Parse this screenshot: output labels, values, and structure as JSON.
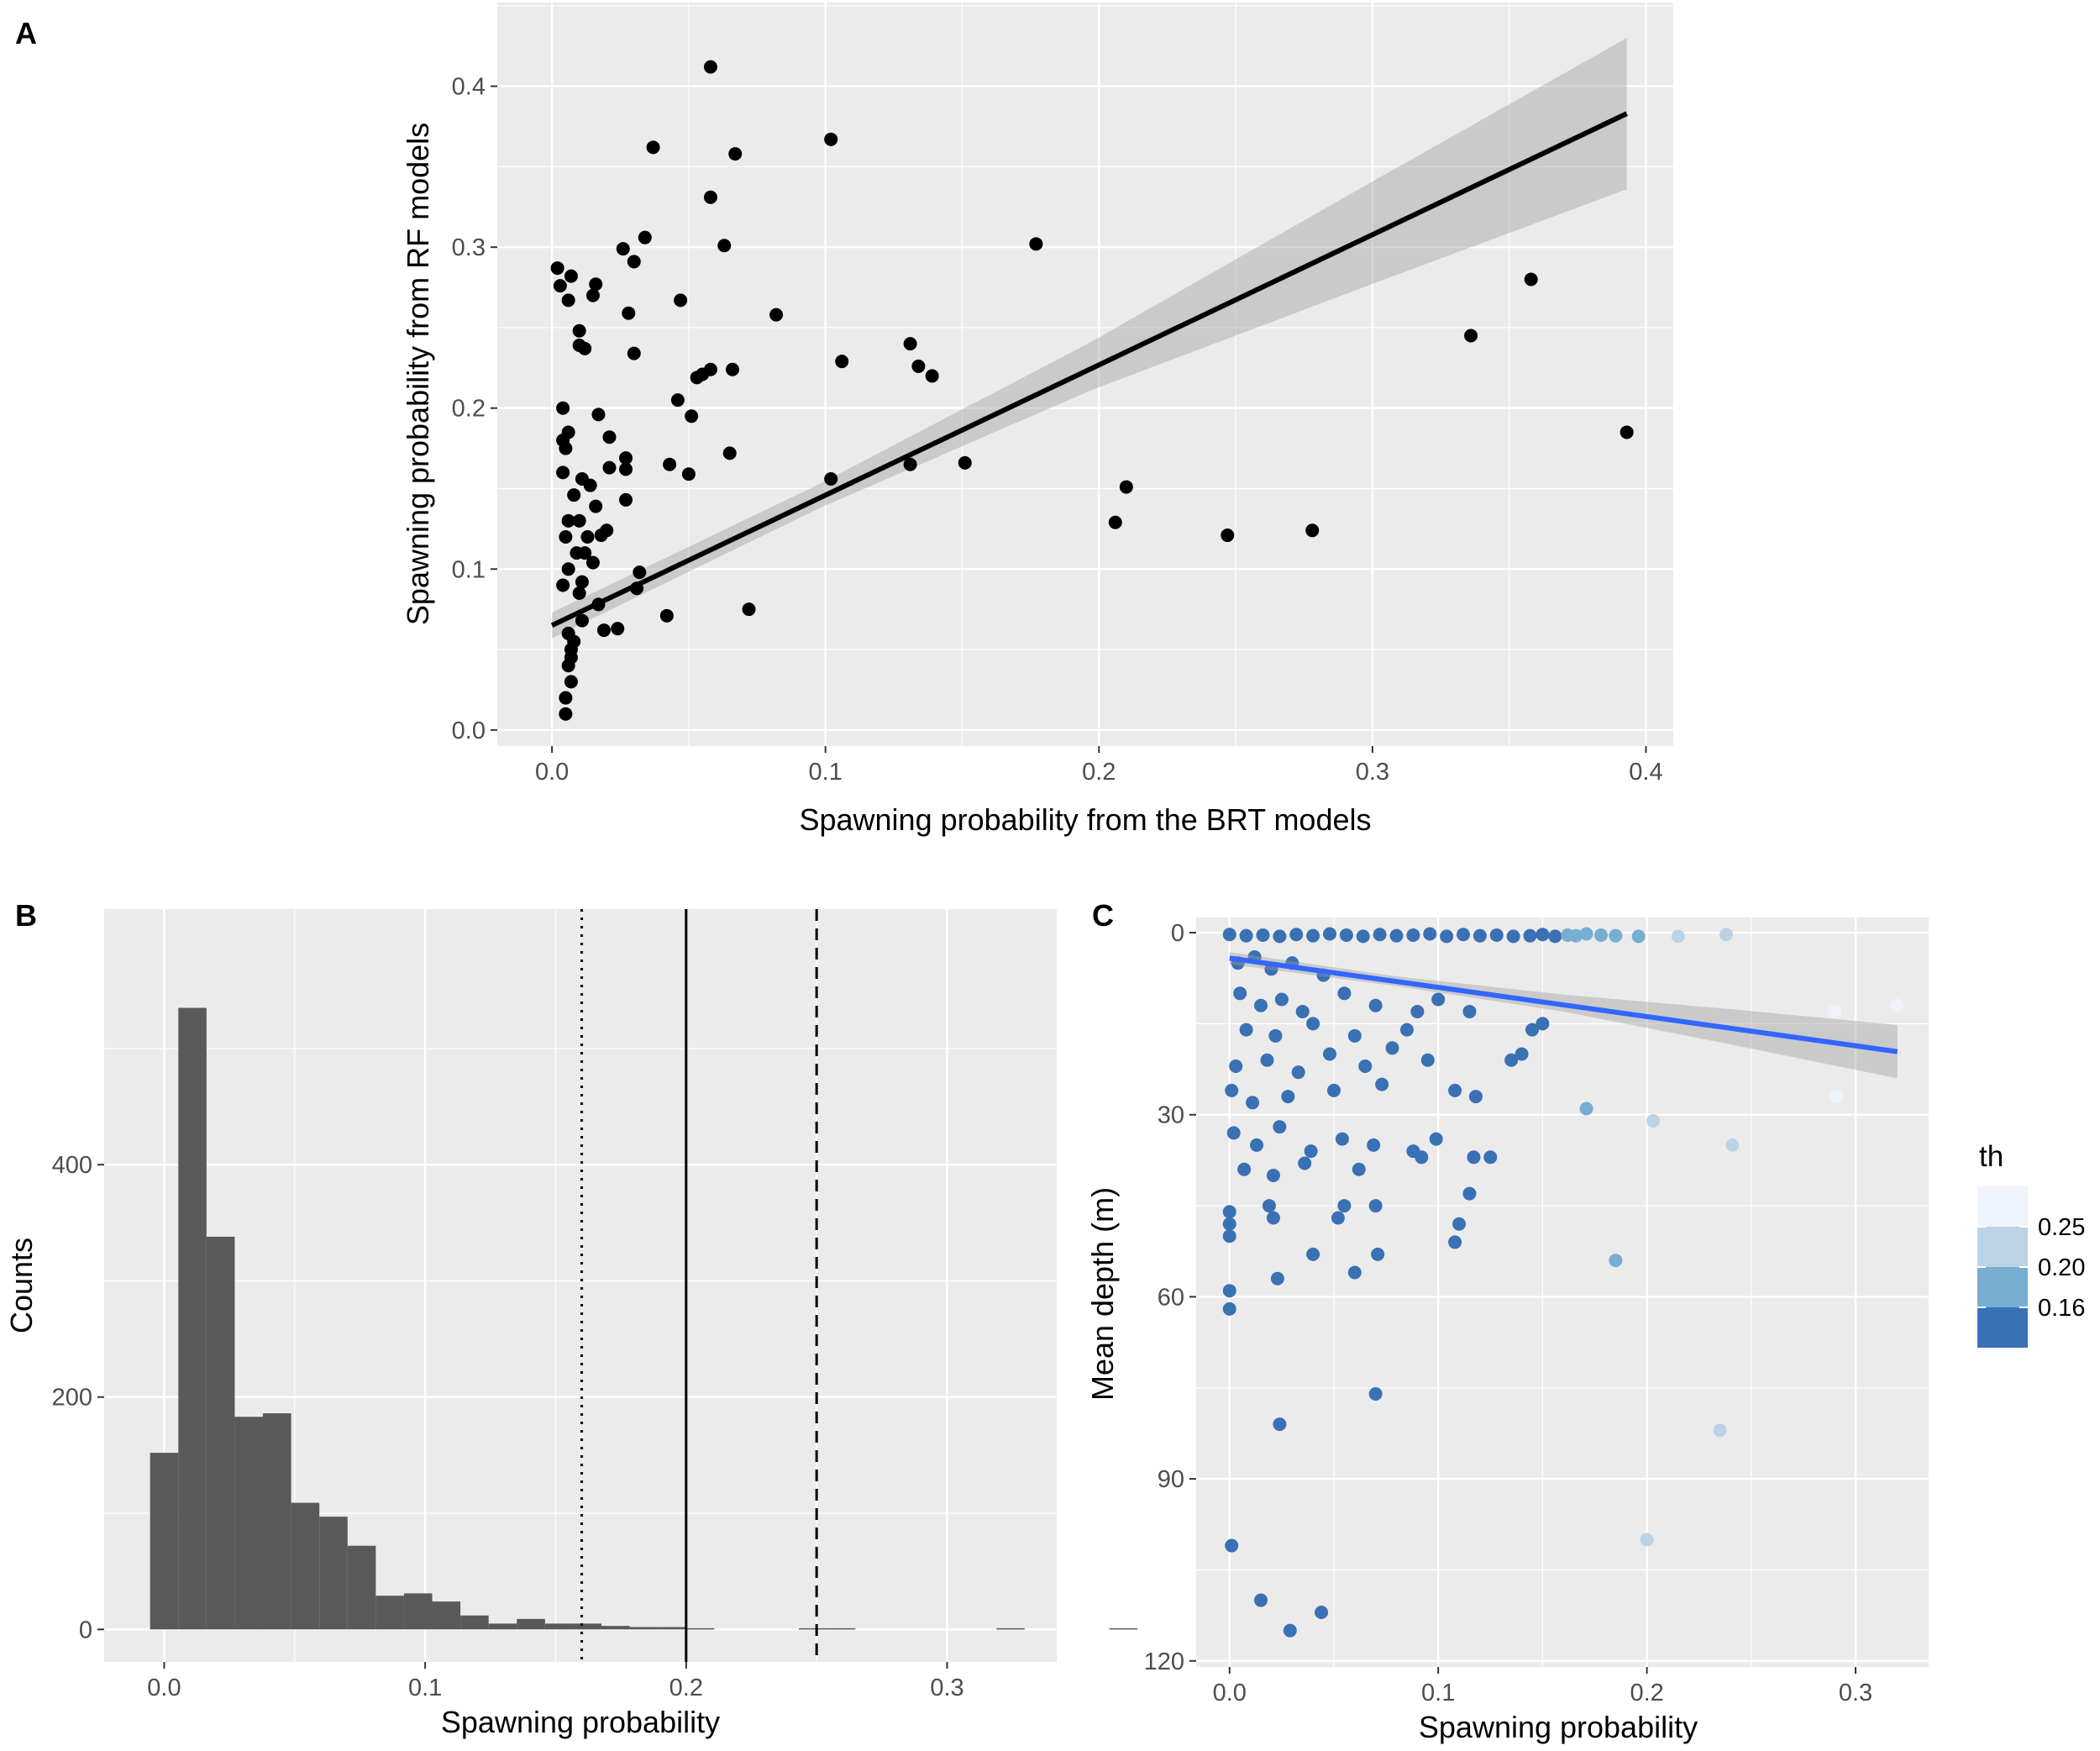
{
  "panels": {
    "a": "A",
    "b": "B",
    "c": "C"
  },
  "chart_data": [
    {
      "id": "A",
      "type": "scatter",
      "xlabel": "Spawning probability from the BRT models",
      "ylabel": "Spawning probability from RF models",
      "xlim": [
        -0.02,
        0.41
      ],
      "ylim": [
        -0.01,
        0.452
      ],
      "xticks": [
        0.0,
        0.1,
        0.2,
        0.3,
        0.4
      ],
      "xtick_labels": [
        "0.0",
        "0.1",
        "0.2",
        "0.3",
        "0.4"
      ],
      "yticks": [
        0.0,
        0.1,
        0.2,
        0.3,
        0.4
      ],
      "ytick_labels": [
        "0.0",
        "0.1",
        "0.2",
        "0.3",
        "0.4"
      ],
      "grid": true,
      "point_color": "#000000",
      "points": [
        [
          0.058,
          0.412
        ],
        [
          0.102,
          0.367
        ],
        [
          0.037,
          0.362
        ],
        [
          0.067,
          0.358
        ],
        [
          0.058,
          0.331
        ],
        [
          0.034,
          0.306
        ],
        [
          0.063,
          0.301
        ],
        [
          0.177,
          0.302
        ],
        [
          0.026,
          0.299
        ],
        [
          0.03,
          0.291
        ],
        [
          0.016,
          0.277
        ],
        [
          0.015,
          0.27
        ],
        [
          0.047,
          0.267
        ],
        [
          0.082,
          0.258
        ],
        [
          0.028,
          0.259
        ],
        [
          0.006,
          0.267
        ],
        [
          0.007,
          0.282
        ],
        [
          0.01,
          0.248
        ],
        [
          0.01,
          0.239
        ],
        [
          0.131,
          0.24
        ],
        [
          0.134,
          0.226
        ],
        [
          0.139,
          0.22
        ],
        [
          0.106,
          0.229
        ],
        [
          0.058,
          0.224
        ],
        [
          0.066,
          0.224
        ],
        [
          0.055,
          0.221
        ],
        [
          0.053,
          0.219
        ],
        [
          0.03,
          0.234
        ],
        [
          0.012,
          0.237
        ],
        [
          0.046,
          0.205
        ],
        [
          0.051,
          0.195
        ],
        [
          0.017,
          0.196
        ],
        [
          0.021,
          0.182
        ],
        [
          0.027,
          0.169
        ],
        [
          0.027,
          0.162
        ],
        [
          0.021,
          0.163
        ],
        [
          0.043,
          0.165
        ],
        [
          0.05,
          0.159
        ],
        [
          0.065,
          0.172
        ],
        [
          0.131,
          0.165
        ],
        [
          0.151,
          0.166
        ],
        [
          0.102,
          0.156
        ],
        [
          0.21,
          0.151
        ],
        [
          0.206,
          0.129
        ],
        [
          0.247,
          0.121
        ],
        [
          0.278,
          0.124
        ],
        [
          0.336,
          0.245
        ],
        [
          0.358,
          0.28
        ],
        [
          0.393,
          0.185
        ],
        [
          0.027,
          0.143
        ],
        [
          0.02,
          0.124
        ],
        [
          0.018,
          0.121
        ],
        [
          0.016,
          0.139
        ],
        [
          0.014,
          0.152
        ],
        [
          0.011,
          0.156
        ],
        [
          0.008,
          0.146
        ],
        [
          0.006,
          0.13
        ],
        [
          0.009,
          0.11
        ],
        [
          0.012,
          0.11
        ],
        [
          0.015,
          0.104
        ],
        [
          0.011,
          0.092
        ],
        [
          0.01,
          0.085
        ],
        [
          0.032,
          0.098
        ],
        [
          0.031,
          0.088
        ],
        [
          0.017,
          0.078
        ],
        [
          0.011,
          0.068
        ],
        [
          0.019,
          0.062
        ],
        [
          0.024,
          0.063
        ],
        [
          0.042,
          0.071
        ],
        [
          0.072,
          0.075
        ],
        [
          0.006,
          0.06
        ],
        [
          0.007,
          0.05
        ],
        [
          0.006,
          0.04
        ],
        [
          0.007,
          0.03
        ],
        [
          0.005,
          0.02
        ],
        [
          0.005,
          0.01
        ],
        [
          0.007,
          0.045
        ],
        [
          0.008,
          0.055
        ],
        [
          0.004,
          0.09
        ],
        [
          0.004,
          0.16
        ],
        [
          0.005,
          0.175
        ],
        [
          0.006,
          0.185
        ],
        [
          0.004,
          0.2
        ],
        [
          0.002,
          0.287
        ],
        [
          0.003,
          0.276
        ],
        [
          0.004,
          0.18
        ],
        [
          0.005,
          0.12
        ],
        [
          0.006,
          0.1
        ],
        [
          0.01,
          0.13
        ],
        [
          0.013,
          0.12
        ]
      ],
      "fit_line": {
        "x": [
          0.0,
          0.393
        ],
        "y": [
          0.065,
          0.383
        ],
        "color": "#000000"
      },
      "confidence_band": {
        "x": [
          0.0,
          0.098,
          0.197,
          0.295,
          0.393
        ],
        "lower": [
          0.057,
          0.138,
          0.211,
          0.274,
          0.336
        ],
        "upper": [
          0.073,
          0.153,
          0.241,
          0.336,
          0.43
        ],
        "color": "#999999"
      }
    },
    {
      "id": "B",
      "type": "bar",
      "subtype": "histogram",
      "xlabel": "Spawning probability",
      "ylabel": "Counts",
      "xlim": [
        -0.023,
        0.342
      ],
      "ylim": [
        -28,
        620
      ],
      "xticks": [
        0.0,
        0.1,
        0.2,
        0.3
      ],
      "xtick_labels": [
        "0.0",
        "0.1",
        "0.2",
        "0.3"
      ],
      "yticks": [
        0,
        200,
        400
      ],
      "ytick_labels": [
        "0",
        "200",
        "400"
      ],
      "grid": true,
      "bin_width": 0.01081,
      "first_bin_start": -0.0054,
      "bar_color": "#595959",
      "counts": [
        152,
        535,
        338,
        183,
        186,
        109,
        97,
        72,
        29,
        31,
        24,
        12,
        5,
        9,
        5,
        5,
        3,
        2,
        2,
        1,
        0,
        0,
        0,
        1,
        1,
        0,
        0,
        0,
        0,
        0,
        1,
        0,
        0,
        0,
        1
      ],
      "vlines": [
        {
          "x": 0.16,
          "style": "dotted"
        },
        {
          "x": 0.2,
          "style": "solid"
        },
        {
          "x": 0.25,
          "style": "dashed"
        }
      ]
    },
    {
      "id": "C",
      "type": "scatter",
      "xlabel": "Spawning probability",
      "ylabel": "Mean depth (m)",
      "xlim": [
        -0.016,
        0.335
      ],
      "ylim": [
        121,
        -2.5
      ],
      "y_reversed": true,
      "xticks": [
        0.0,
        0.1,
        0.2,
        0.3
      ],
      "xtick_labels": [
        "0.0",
        "0.1",
        "0.2",
        "0.3"
      ],
      "yticks": [
        0,
        30,
        60,
        90,
        120
      ],
      "ytick_labels": [
        "0",
        "30",
        "60",
        "90",
        "120"
      ],
      "grid": true,
      "points": [
        [
          0.0,
          0.3,
          0.12
        ],
        [
          0.008,
          0.5,
          0.12
        ],
        [
          0.016,
          0.4,
          0.12
        ],
        [
          0.024,
          0.6,
          0.12
        ],
        [
          0.032,
          0.3,
          0.12
        ],
        [
          0.04,
          0.5,
          0.12
        ],
        [
          0.048,
          0.2,
          0.12
        ],
        [
          0.056,
          0.4,
          0.12
        ],
        [
          0.064,
          0.6,
          0.12
        ],
        [
          0.072,
          0.3,
          0.12
        ],
        [
          0.08,
          0.5,
          0.12
        ],
        [
          0.088,
          0.4,
          0.12
        ],
        [
          0.096,
          0.2,
          0.12
        ],
        [
          0.104,
          0.6,
          0.12
        ],
        [
          0.112,
          0.3,
          0.12
        ],
        [
          0.12,
          0.5,
          0.12
        ],
        [
          0.128,
          0.4,
          0.12
        ],
        [
          0.136,
          0.6,
          0.12
        ],
        [
          0.144,
          0.5,
          0.12
        ],
        [
          0.15,
          0.3,
          0.12
        ],
        [
          0.156,
          0.6,
          0.13
        ],
        [
          0.162,
          0.4,
          0.17
        ],
        [
          0.166,
          0.5,
          0.18
        ],
        [
          0.171,
          0.2,
          0.19
        ],
        [
          0.178,
          0.4,
          0.17
        ],
        [
          0.185,
          0.5,
          0.18
        ],
        [
          0.196,
          0.6,
          0.19
        ],
        [
          0.215,
          0.6,
          0.24
        ],
        [
          0.238,
          0.3,
          0.24
        ],
        [
          0.004,
          5,
          0.12
        ],
        [
          0.012,
          4,
          0.12
        ],
        [
          0.02,
          6,
          0.12
        ],
        [
          0.03,
          5,
          0.12
        ],
        [
          0.045,
          7,
          0.12
        ],
        [
          0.005,
          10,
          0.12
        ],
        [
          0.015,
          12,
          0.12
        ],
        [
          0.025,
          11,
          0.12
        ],
        [
          0.035,
          13,
          0.12
        ],
        [
          0.055,
          10,
          0.12
        ],
        [
          0.07,
          12,
          0.12
        ],
        [
          0.09,
          13,
          0.12
        ],
        [
          0.1,
          11,
          0.12
        ],
        [
          0.008,
          16,
          0.12
        ],
        [
          0.022,
          17,
          0.12
        ],
        [
          0.04,
          15,
          0.12
        ],
        [
          0.06,
          17,
          0.12
        ],
        [
          0.085,
          16,
          0.12
        ],
        [
          0.115,
          13,
          0.12
        ],
        [
          0.145,
          16,
          0.12
        ],
        [
          0.15,
          15,
          0.12
        ],
        [
          0.003,
          22,
          0.12
        ],
        [
          0.018,
          21,
          0.12
        ],
        [
          0.033,
          23,
          0.12
        ],
        [
          0.048,
          20,
          0.12
        ],
        [
          0.065,
          22,
          0.12
        ],
        [
          0.078,
          19,
          0.12
        ],
        [
          0.095,
          21,
          0.12
        ],
        [
          0.135,
          21,
          0.12
        ],
        [
          0.14,
          20,
          0.12
        ],
        [
          0.001,
          26,
          0.12
        ],
        [
          0.011,
          28,
          0.12
        ],
        [
          0.028,
          27,
          0.12
        ],
        [
          0.05,
          26,
          0.12
        ],
        [
          0.073,
          25,
          0.12
        ],
        [
          0.108,
          26,
          0.12
        ],
        [
          0.118,
          27,
          0.12
        ],
        [
          0.171,
          29,
          0.18
        ],
        [
          0.002,
          33,
          0.12
        ],
        [
          0.013,
          35,
          0.12
        ],
        [
          0.024,
          32,
          0.12
        ],
        [
          0.039,
          36,
          0.12
        ],
        [
          0.054,
          34,
          0.12
        ],
        [
          0.069,
          35,
          0.12
        ],
        [
          0.088,
          36,
          0.12
        ],
        [
          0.099,
          34,
          0.12
        ],
        [
          0.117,
          37,
          0.12
        ],
        [
          0.125,
          37,
          0.12
        ],
        [
          0.203,
          31,
          0.22
        ],
        [
          0.241,
          35,
          0.24
        ],
        [
          0.007,
          39,
          0.12
        ],
        [
          0.021,
          40,
          0.12
        ],
        [
          0.036,
          38,
          0.12
        ],
        [
          0.062,
          39,
          0.12
        ],
        [
          0.092,
          37,
          0.12
        ],
        [
          0.115,
          43,
          0.12
        ],
        [
          0.0,
          46,
          0.12
        ],
        [
          0.019,
          45,
          0.12
        ],
        [
          0.055,
          45,
          0.12
        ],
        [
          0.07,
          45,
          0.12
        ],
        [
          0.0,
          48,
          0.12
        ],
        [
          0.021,
          47,
          0.12
        ],
        [
          0.052,
          47,
          0.12
        ],
        [
          0.11,
          48,
          0.12
        ],
        [
          0.0,
          50,
          0.12
        ],
        [
          0.04,
          53,
          0.12
        ],
        [
          0.071,
          53,
          0.12
        ],
        [
          0.108,
          51,
          0.12
        ],
        [
          0.185,
          54,
          0.18
        ],
        [
          0.06,
          56,
          0.12
        ],
        [
          0.023,
          57,
          0.12
        ],
        [
          0.0,
          59,
          0.12
        ],
        [
          0.0,
          62,
          0.12
        ],
        [
          0.07,
          76,
          0.12
        ],
        [
          0.024,
          81,
          0.12
        ],
        [
          0.235,
          82,
          0.22
        ],
        [
          0.2,
          100,
          0.22
        ],
        [
          0.001,
          101,
          0.12
        ],
        [
          0.015,
          110,
          0.12
        ],
        [
          0.044,
          112,
          0.12
        ],
        [
          0.029,
          115,
          0.12
        ],
        [
          0.29,
          13,
          0.26
        ],
        [
          0.32,
          12,
          0.27
        ],
        [
          0.291,
          27,
          0.26
        ]
      ],
      "fit_line": {
        "x": [
          0.0,
          0.32
        ],
        "y": [
          4.2,
          19.6
        ],
        "color": "#3366ff"
      },
      "confidence_band": {
        "x": [
          0.0,
          0.08,
          0.16,
          0.24,
          0.32
        ],
        "lower": [
          3.2,
          7.2,
          10.2,
          12.6,
          15.2
        ],
        "upper": [
          5.2,
          8.8,
          13.0,
          18.4,
          24.0
        ],
        "color": "#999999"
      },
      "legend": {
        "title": "th",
        "placement": "right",
        "breaks": [
          "0.25",
          "0.20",
          "0.16"
        ],
        "bins": [
          {
            "max": 0.16,
            "color": "#3a70b4"
          },
          {
            "max": 0.2,
            "color": "#77aed2"
          },
          {
            "max": 0.25,
            "color": "#bcd3e6"
          },
          {
            "max": 1.0,
            "color": "#eff3fc"
          }
        ]
      }
    }
  ]
}
